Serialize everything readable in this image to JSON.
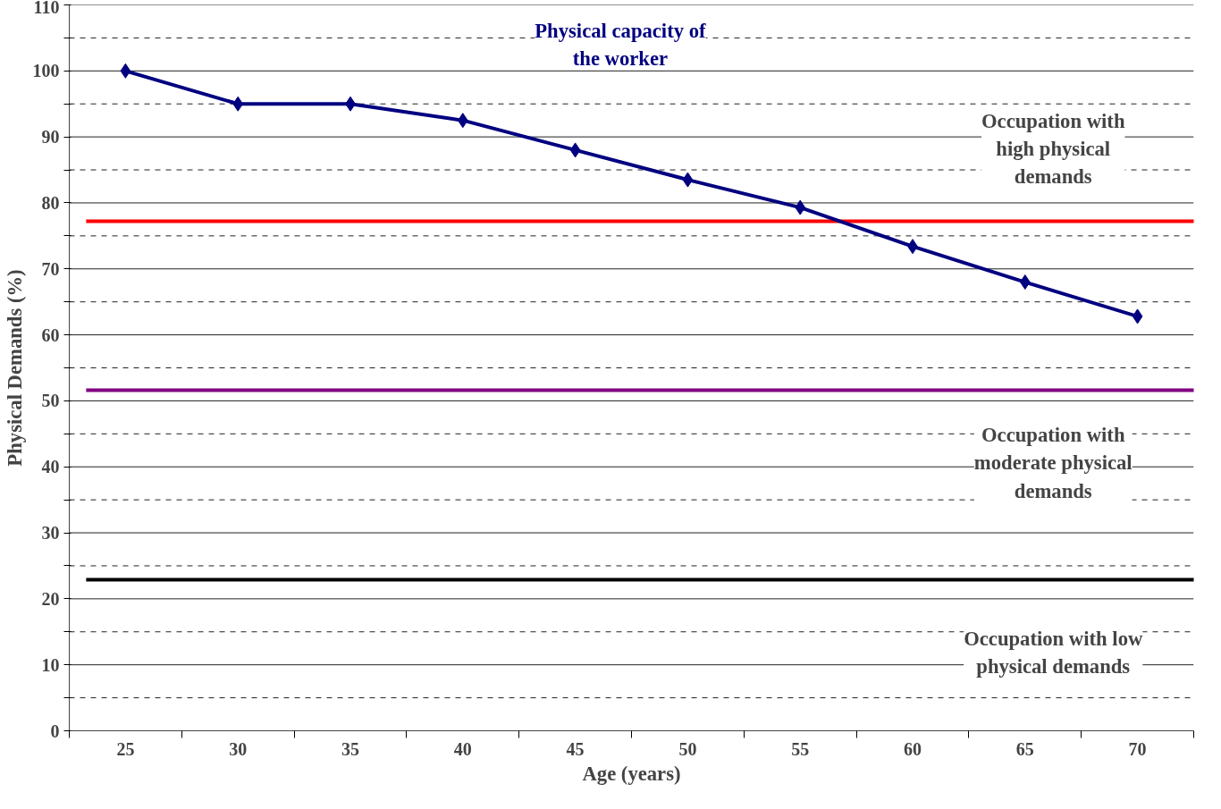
{
  "chart_data": {
    "type": "line",
    "xlabel": "Age (years)",
    "ylabel": "Physical Demands (%)",
    "categories": [
      "25",
      "30",
      "35",
      "40",
      "45",
      "50",
      "55",
      "60",
      "65",
      "70"
    ],
    "series": [
      {
        "name": "Physical capacity of\nthe worker",
        "color": "#000080",
        "values": [
          100,
          95,
          95,
          92.5,
          88,
          83.5,
          79.3,
          73.4,
          68,
          62.8
        ]
      }
    ],
    "marker": "diamond",
    "line_style": "solid",
    "grid": "y",
    "ylim": [
      0,
      110
    ],
    "yticks": [
      0,
      {
        "value": 5,
        "label": null
      },
      10,
      {
        "value": 15,
        "label": null
      },
      20,
      {
        "value": 25,
        "label": null
      },
      30,
      {
        "value": 35,
        "label": null
      },
      40,
      {
        "value": 45,
        "label": null
      },
      50,
      {
        "value": 55,
        "label": null
      },
      60,
      {
        "value": 65,
        "label": null
      },
      70,
      {
        "value": 75,
        "label": null
      },
      80,
      {
        "value": 85,
        "label": null
      },
      90,
      {
        "value": 95,
        "label": null
      },
      100,
      {
        "value": 105,
        "label": null
      },
      110
    ],
    "ref_lines": [
      {
        "axis": "y",
        "value": 77.2,
        "label": "Occupation with\nhigh physical\ndemands",
        "color": "#ff0000"
      },
      {
        "axis": "y",
        "value": 51.6,
        "label": "Occupation with\nmoderate physical\ndemands",
        "color": "#800080"
      },
      {
        "axis": "y",
        "value": 22.9,
        "label": "Occupation with low\nphysical demands",
        "color": "#000000"
      }
    ]
  }
}
